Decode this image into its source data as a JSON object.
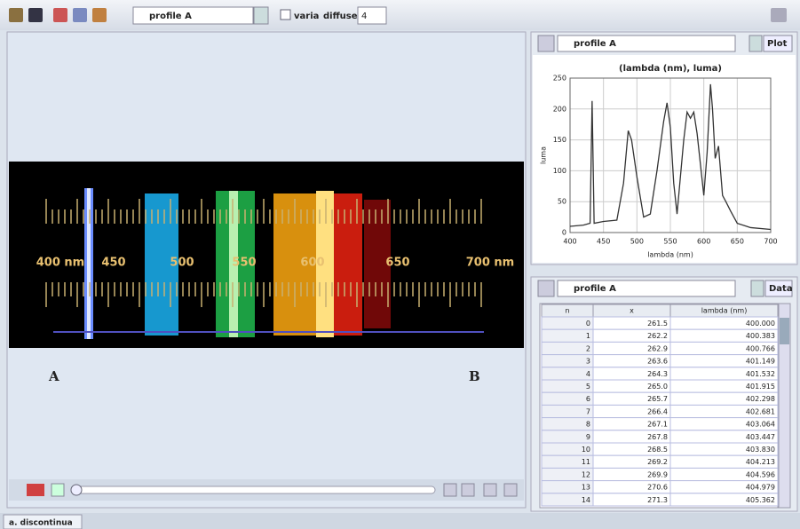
{
  "toolbar": {
    "track": "profile A",
    "checkbox": "varia",
    "diffuse_label": "diffuse",
    "diffuse_value": "4"
  },
  "video": {
    "scale_labels": [
      "400 nm",
      "450",
      "500",
      "550",
      "600",
      "650",
      "700 nm"
    ],
    "point_a": "A",
    "point_b": "B"
  },
  "plot_panel": {
    "track": "profile A",
    "button": "Plot"
  },
  "chart_data": {
    "type": "line",
    "title": "(lambda (nm), luma)",
    "x_label": "lambda (nm)",
    "y_label": "luma",
    "x": [
      400,
      420,
      430,
      433,
      436,
      450,
      470,
      480,
      487,
      492,
      500,
      510,
      520,
      530,
      540,
      545,
      550,
      555,
      560,
      570,
      575,
      580,
      585,
      590,
      595,
      600,
      605,
      610,
      613,
      617,
      622,
      628,
      633,
      640,
      650,
      670,
      700
    ],
    "values": [
      10,
      12,
      15,
      213,
      15,
      18,
      20,
      80,
      165,
      150,
      90,
      25,
      30,
      100,
      180,
      210,
      170,
      80,
      30,
      150,
      195,
      185,
      195,
      160,
      110,
      60,
      130,
      240,
      200,
      120,
      140,
      60,
      50,
      35,
      15,
      8,
      5
    ],
    "color": "#333333",
    "xlim": [
      400,
      700
    ],
    "ylim": [
      0,
      250
    ],
    "xticks": [
      400,
      450,
      500,
      550,
      600,
      650,
      700
    ],
    "yticks": [
      0,
      50,
      100,
      150,
      200,
      250
    ],
    "grid": true
  },
  "table_panel": {
    "track": "profile A",
    "button": "Data",
    "columns": [
      "n",
      "x",
      "lambda (nm)"
    ],
    "rows": [
      [
        "0",
        "261.5",
        "400.000"
      ],
      [
        "1",
        "262.2",
        "400.383"
      ],
      [
        "2",
        "262.9",
        "400.766"
      ],
      [
        "3",
        "263.6",
        "401.149"
      ],
      [
        "4",
        "264.3",
        "401.532"
      ],
      [
        "5",
        "265.0",
        "401.915"
      ],
      [
        "6",
        "265.7",
        "402.298"
      ],
      [
        "7",
        "266.4",
        "402.681"
      ],
      [
        "8",
        "267.1",
        "403.064"
      ],
      [
        "9",
        "267.8",
        "403.447"
      ],
      [
        "10",
        "268.5",
        "403.830"
      ],
      [
        "11",
        "269.2",
        "404.213"
      ],
      [
        "12",
        "269.9",
        "404.596"
      ],
      [
        "13",
        "270.6",
        "404.979"
      ],
      [
        "14",
        "271.3",
        "405.362"
      ]
    ]
  },
  "tabs": [
    "a. discontinua"
  ]
}
